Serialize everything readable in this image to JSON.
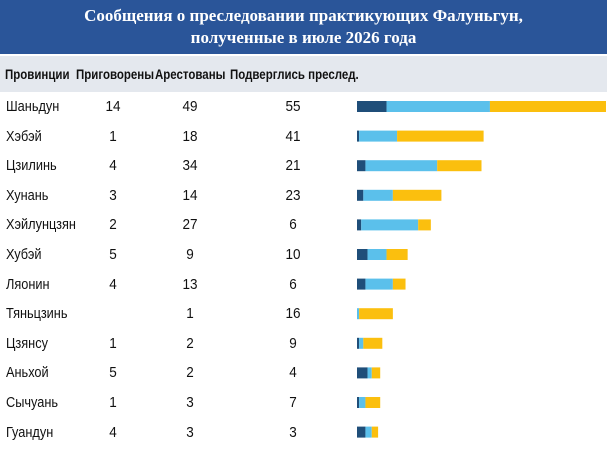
{
  "chart_data": {
    "type": "bar",
    "orientation": "horizontal",
    "stacked": true,
    "title_line1": "Сообщения о преследовании практикующих Фалуньгун,",
    "title_line2": "полученные в июле 2026 года",
    "columns": [
      "Провинции",
      "Приговорены",
      "Арестованы",
      "Подверглись преслед."
    ],
    "categories": [
      "Шаньдун",
      "Хэбэй",
      "Цзилинь",
      "Хунань",
      "Хэйлунцзян",
      "Хубэй",
      "Ляонин",
      "Тяньцзинь",
      "Цзянсу",
      "Аньхой",
      "Сычуань",
      "Гуандун"
    ],
    "series": [
      {
        "values": [
          14,
          1,
          4,
          3,
          2,
          5,
          4,
          null,
          1,
          5,
          1,
          4
        ],
        "color": "#1f4e79"
      },
      {
        "values": [
          49,
          18,
          34,
          14,
          27,
          9,
          13,
          1,
          2,
          2,
          3,
          3
        ],
        "color": "#5bc0eb"
      },
      {
        "values": [
          55,
          41,
          21,
          23,
          6,
          10,
          6,
          16,
          9,
          4,
          7,
          3
        ],
        "color": "#fbbf0e"
      }
    ],
    "legend": "none",
    "grid": false
  }
}
